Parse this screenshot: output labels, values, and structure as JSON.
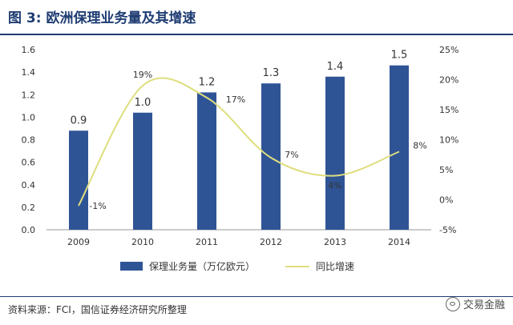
{
  "figure": {
    "title": "图 3: 欧洲保理业务量及其增速",
    "source": "资料来源：FCI，国信证券经济研究所整理",
    "watermark": "交易金融"
  },
  "chart_data": {
    "type": "bar",
    "categories": [
      "2009",
      "2010",
      "2011",
      "2012",
      "2013",
      "2014"
    ],
    "series": [
      {
        "name": "保理业务量（万亿欧元）",
        "type": "bar",
        "axis": "left",
        "values": [
          0.9,
          1.0,
          1.2,
          1.3,
          1.4,
          1.5
        ],
        "value_labels": [
          "0.9",
          "1.0",
          "1.2",
          "1.3",
          "1.4",
          "1.5"
        ],
        "plot_values": [
          0.88,
          1.04,
          1.22,
          1.3,
          1.36,
          1.46
        ],
        "color": "#2f5496"
      },
      {
        "name": "同比增速",
        "type": "line",
        "axis": "right",
        "values": [
          -1,
          19,
          17,
          7,
          4,
          8
        ],
        "value_labels": [
          "-1%",
          "19%",
          "17%",
          "7%",
          "4%",
          "8%"
        ],
        "color": "#dede7e"
      }
    ],
    "y_left": {
      "ylim": [
        0,
        1.6
      ],
      "ticks": [
        "0.0",
        "0.2",
        "0.4",
        "0.6",
        "0.8",
        "1.0",
        "1.2",
        "1.4",
        "1.6"
      ],
      "tick_values": [
        0,
        0.2,
        0.4,
        0.6,
        0.8,
        1.0,
        1.2,
        1.4,
        1.6
      ]
    },
    "y_right": {
      "ylim": [
        -5,
        25
      ],
      "ticks": [
        "-5%",
        "0%",
        "5%",
        "10%",
        "15%",
        "20%",
        "25%"
      ],
      "tick_values": [
        -5,
        0,
        5,
        10,
        15,
        20,
        25
      ]
    },
    "grid": false,
    "legend": "bottom"
  }
}
